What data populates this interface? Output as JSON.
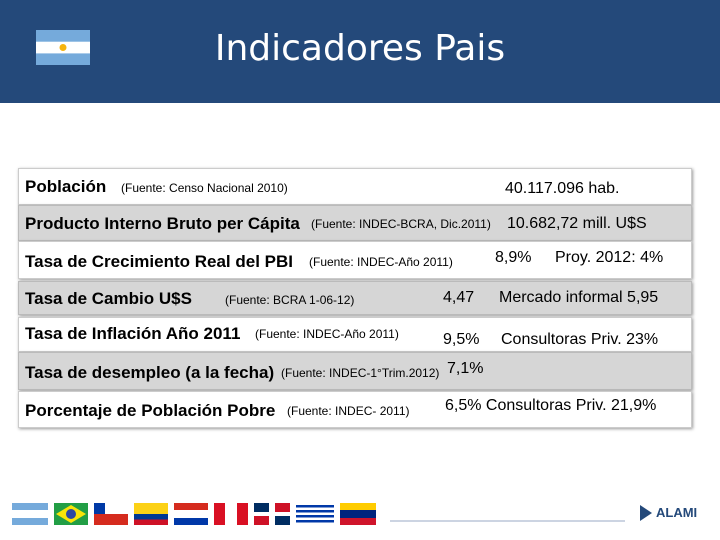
{
  "header": {
    "title": "Indicadores Pais"
  },
  "rows": [
    {
      "label": "Población",
      "source": "(Fuente: Censo Nacional 2010)",
      "values": [
        "40.117.096 hab."
      ]
    },
    {
      "label": "Producto  Interno Bruto per Cápita",
      "source": "(Fuente: INDEC-BCRA, Dic.2011)",
      "values": [
        "10.682,72 mill. U$S"
      ]
    },
    {
      "label": "Tasa de Crecimiento Real del PBI",
      "source": "(Fuente: INDEC-Año 2011)",
      "values": [
        "8,9%",
        "Proy. 2012: 4%"
      ]
    },
    {
      "label": "Tasa de Cambio U$S",
      "source": "(Fuente: BCRA 1-06-12)",
      "values": [
        "4,47",
        "Mercado informal  5,95"
      ]
    },
    {
      "label": "Tasa de Inflación Año 2011",
      "source": "(Fuente: INDEC-Año 2011)",
      "values": [
        "9,5%",
        "Consultoras Priv. 23%"
      ]
    },
    {
      "label": "Tasa de desempleo (a la fecha)",
      "source": "(Fuente: INDEC-1°Trim.2012)",
      "values": [
        "7,1%"
      ]
    },
    {
      "label": "Porcentaje de Población Pobre",
      "source": "(Fuente: INDEC- 2011)",
      "values": [
        "6,5% Consultoras Priv. 21,9%"
      ]
    }
  ],
  "footer": {
    "logo": "ALAMI"
  }
}
